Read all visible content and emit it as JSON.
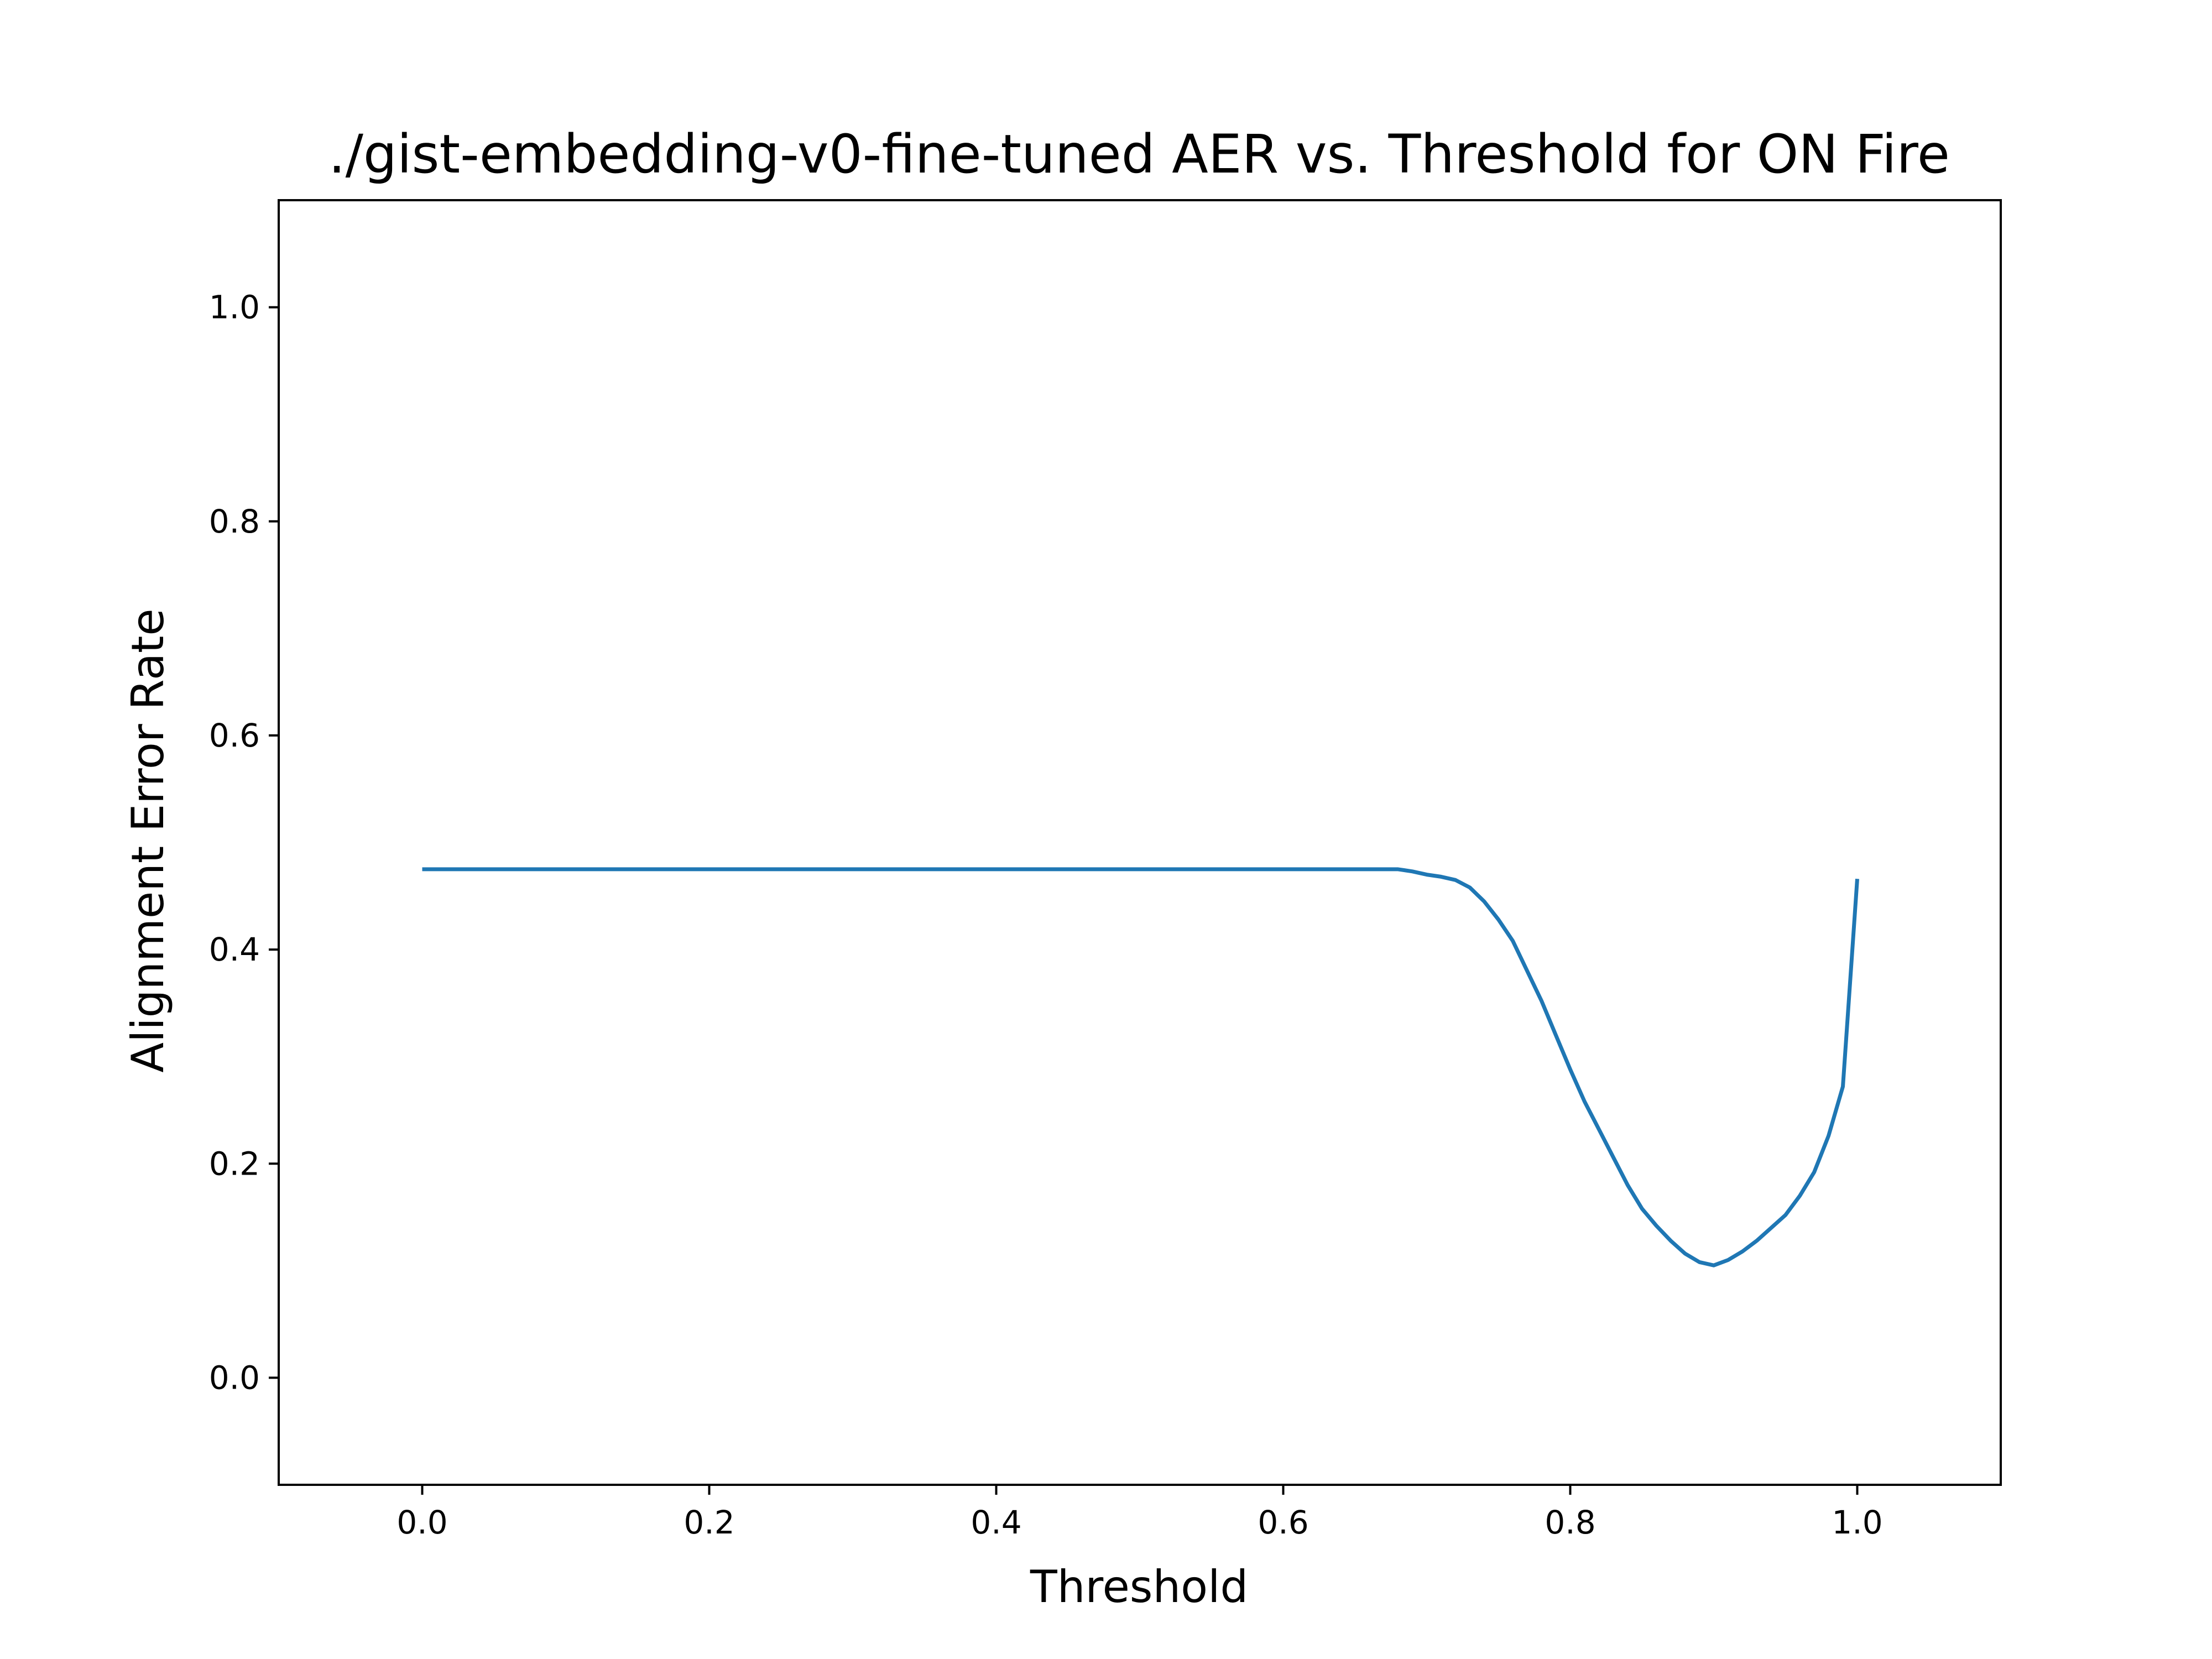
{
  "chart_data": {
    "type": "line",
    "title": "./gist-embedding-v0-fine-tuned AER vs. Threshold for ON Fire",
    "xlabel": "Threshold",
    "ylabel": "Alignment Error Rate",
    "xlim": [
      -0.1,
      1.1
    ],
    "ylim": [
      -0.1,
      1.1
    ],
    "xticks": [
      0.0,
      0.2,
      0.4,
      0.6,
      0.8,
      1.0
    ],
    "xtick_labels": [
      "0.0",
      "0.2",
      "0.4",
      "0.6",
      "0.8",
      "1.0"
    ],
    "yticks": [
      0.0,
      0.2,
      0.4,
      0.6,
      0.8,
      1.0
    ],
    "ytick_labels": [
      "0.0",
      "0.2",
      "0.4",
      "0.6",
      "0.8",
      "1.0"
    ],
    "grid": false,
    "color": "#1f77b4",
    "series": [
      {
        "x": [
          0.0,
          0.1,
          0.2,
          0.3,
          0.4,
          0.5,
          0.6,
          0.68,
          0.69,
          0.7,
          0.71,
          0.72,
          0.73,
          0.74,
          0.75,
          0.76,
          0.77,
          0.78,
          0.79,
          0.8,
          0.81,
          0.82,
          0.83,
          0.84,
          0.85,
          0.86,
          0.87,
          0.88,
          0.89,
          0.9,
          0.91,
          0.92,
          0.93,
          0.94,
          0.95,
          0.96,
          0.97,
          0.98,
          0.99,
          1.0
        ],
        "y": [
          0.475,
          0.475,
          0.475,
          0.475,
          0.475,
          0.475,
          0.475,
          0.475,
          0.473,
          0.47,
          0.468,
          0.465,
          0.458,
          0.445,
          0.428,
          0.408,
          0.38,
          0.352,
          0.32,
          0.288,
          0.258,
          0.232,
          0.206,
          0.18,
          0.158,
          0.142,
          0.128,
          0.116,
          0.108,
          0.105,
          0.11,
          0.118,
          0.128,
          0.14,
          0.152,
          0.17,
          0.192,
          0.226,
          0.272,
          0.466
        ]
      }
    ]
  }
}
